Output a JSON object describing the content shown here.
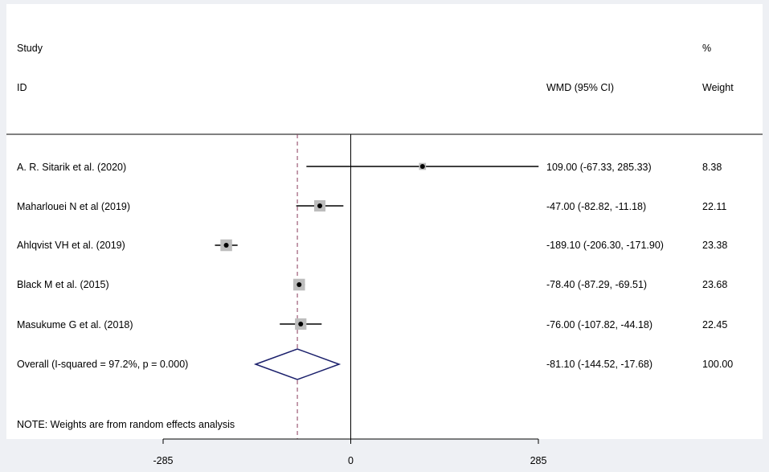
{
  "chart_data": {
    "type": "forest",
    "header": {
      "study_line1": "Study",
      "study_line2": "ID",
      "effect_label": "WMD (95% CI)",
      "weight_line1": "%",
      "weight_line2": "Weight"
    },
    "studies": [
      {
        "label": "A. R. Sitarik et al. (2020)",
        "estimate": 109.0,
        "lower": -67.33,
        "upper": 285.33,
        "ci_text": "109.00 (-67.33, 285.33)",
        "weight": 8.38,
        "weight_text": "8.38"
      },
      {
        "label": "Maharlouei N et al (2019)",
        "estimate": -47.0,
        "lower": -82.82,
        "upper": -11.18,
        "ci_text": "-47.00 (-82.82, -11.18)",
        "weight": 22.11,
        "weight_text": "22.11"
      },
      {
        "label": "Ahlqvist VH et al. (2019)",
        "estimate": -189.1,
        "lower": -206.3,
        "upper": -171.9,
        "ci_text": "-189.10 (-206.30, -171.90)",
        "weight": 23.38,
        "weight_text": "23.38"
      },
      {
        "label": "Black M et al. (2015)",
        "estimate": -78.4,
        "lower": -87.29,
        "upper": -69.51,
        "ci_text": "-78.40 (-87.29, -69.51)",
        "weight": 23.68,
        "weight_text": "23.68"
      },
      {
        "label": "Masukume G et al. (2018)",
        "estimate": -76.0,
        "lower": -107.82,
        "upper": -44.18,
        "ci_text": "-76.00 (-107.82, -44.18)",
        "weight": 22.45,
        "weight_text": "22.45"
      }
    ],
    "overall": {
      "label": "Overall  (I-squared = 97.2%, p = 0.000)",
      "estimate": -81.1,
      "lower": -144.52,
      "upper": -17.68,
      "ci_text": "-81.10 (-144.52, -17.68)",
      "weight": 100.0,
      "weight_text": "100.00"
    },
    "note": "NOTE: Weights are from random effects analysis",
    "x_ticks": [
      -285,
      0,
      285
    ],
    "x_tick_labels": [
      "-285",
      "0",
      "285"
    ],
    "xlim": [
      -285,
      285
    ],
    "null_line": 0,
    "grid": false,
    "colors": {
      "ci_line": "#000000",
      "point": "#000000",
      "weight_box": "#bdbdbd",
      "overall_diamond": "#1a1f6b",
      "overall_line": "#8a3a5c",
      "background": "#eef0f4",
      "plot_area": "#ffffff"
    }
  }
}
